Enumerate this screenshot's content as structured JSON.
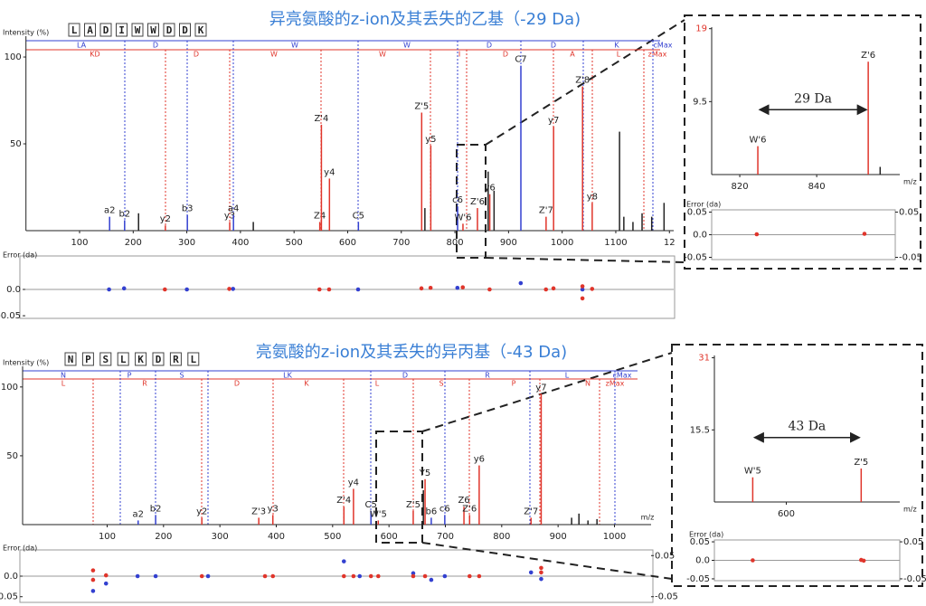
{
  "chart_data": [
    {
      "type": "stem",
      "title": "异亮氨酸的z-ion及其丢失的乙基（-29 Da)",
      "ylabel": "Intensity (%)",
      "sequence": [
        "L",
        "A",
        "D",
        "I",
        "W",
        "W",
        "D",
        "D",
        "K"
      ],
      "c_ladder": [
        "LA",
        "D",
        "W",
        "W",
        "D",
        "D",
        "K",
        "cMax"
      ],
      "z_ladder": [
        "KD",
        "D",
        "W",
        "W",
        "I",
        "D",
        "A",
        "L",
        "zMax"
      ],
      "x": [
        156,
        184,
        210,
        260,
        301,
        380,
        387,
        424,
        548,
        551,
        566,
        620,
        738,
        744,
        755,
        805,
        815,
        842,
        862,
        865,
        873,
        923,
        970,
        984,
        1038,
        1056,
        1107,
        1115,
        1132,
        1149,
        1167,
        1190
      ],
      "values": [
        8,
        6,
        10,
        3,
        9,
        5,
        9,
        5,
        5,
        61,
        30,
        5,
        68,
        13,
        49,
        14,
        4,
        13,
        34,
        21,
        23,
        95,
        8,
        60,
        83,
        16,
        57,
        8,
        5,
        10,
        8,
        16
      ],
      "labels": [
        "a2",
        "b2",
        null,
        "y2",
        "b3",
        "y3",
        "a4",
        null,
        "Z4",
        "Z'4",
        "y4",
        "C5",
        "Z'5",
        null,
        "y5",
        "c6",
        "W'6",
        "Z'6",
        null,
        "y6",
        null,
        "C7",
        "Z'7",
        "y7",
        "Z'8",
        "y8",
        null,
        null,
        null,
        null,
        null,
        null
      ],
      "colors": [
        "#3340d0",
        "#3340d0",
        "#222222",
        "#e0352b",
        "#3340d0",
        "#e0352b",
        "#3340d0",
        "#222222",
        "#e0352b",
        "#e0352b",
        "#e0352b",
        "#3340d0",
        "#e0352b",
        "#222222",
        "#e0352b",
        "#3340d0",
        "#e0352b",
        "#e0352b",
        "#222222",
        "#e0352b",
        "#222222",
        "#3340d0",
        "#e0352b",
        "#e0352b",
        "#e0352b",
        "#e0352b",
        "#222222",
        "#222222",
        "#222222",
        "#222222",
        "#222222",
        "#222222"
      ],
      "xlim": [
        0,
        1208
      ],
      "ylim": [
        0,
        112
      ],
      "xticks": [
        100,
        200,
        300,
        400,
        500,
        600,
        700,
        800,
        900,
        1000,
        1100,
        {
          "value": 1200,
          "label": "12"
        }
      ],
      "yticks": [
        50,
        100
      ]
    },
    {
      "type": "scatter",
      "ylabel": "Error (da)",
      "xlim": [
        0,
        1208
      ],
      "ylim": [
        -0.055,
        0.055
      ],
      "yticks": [
        {
          "value": 0,
          "label": "0.0"
        },
        -0.05
      ],
      "series": [
        {
          "color": "#3340d0",
          "x": [
            156,
            184,
            301,
            387,
            620,
            805,
            923,
            1038
          ],
          "values": [
            0,
            0.002,
            0,
            0.001,
            0,
            0.003,
            0.012,
            0
          ]
        },
        {
          "color": "#e0352b",
          "x": [
            260,
            380,
            548,
            566,
            738,
            755,
            815,
            865,
            970,
            984,
            1038,
            1038,
            1056
          ],
          "values": [
            0,
            0.001,
            0,
            0,
            0.002,
            0.003,
            0.004,
            0,
            0,
            0.002,
            -0.017,
            0.006,
            0.001
          ]
        }
      ]
    },
    {
      "type": "stem",
      "xlabel": "m/z",
      "annotation": "29 Da",
      "x": [
        824.7,
        853.4,
        856.5
      ],
      "values": [
        3.7,
        14.7,
        1
      ],
      "labels": [
        "W'6",
        "Z'6",
        null
      ],
      "colors": [
        "#e0352b",
        "#e0352b",
        "#222222"
      ],
      "xlim": [
        812.7,
        861.6
      ],
      "ylim": [
        0,
        19.2
      ],
      "xticks": [
        820,
        840
      ],
      "yticks": [
        9.5,
        19
      ]
    },
    {
      "type": "scatter",
      "ylabel": "Error (da)",
      "xlim": [
        812.7,
        861.6
      ],
      "ylim": [
        -0.055,
        0.055
      ],
      "yticks": [
        0.05,
        {
          "value": 0,
          "label": "0.0"
        },
        -0.05
      ],
      "y2ticks": [
        0.05,
        -0.05
      ],
      "series": [
        {
          "color": "#e0352b",
          "x": [
            824.7,
            853.4
          ],
          "values": [
            0.001,
            0.002
          ]
        }
      ]
    },
    {
      "type": "stem",
      "title": "亮氨酸的z-ion及其丢失的异丙基（-43 Da)",
      "ylabel": "Intensity (%)",
      "xlabel": "m/z",
      "sequence": [
        "N",
        "P",
        "S",
        "L",
        "K",
        "D",
        "R",
        "L"
      ],
      "c_ladder": [
        "N",
        "P",
        "S",
        "LK",
        "D",
        "R",
        "L",
        "cMax"
      ],
      "z_ladder": [
        "L",
        "R",
        "D",
        "K",
        "L",
        "S",
        "P",
        "N",
        "zMax"
      ],
      "x": [
        155,
        186,
        268,
        369,
        394,
        520,
        537,
        568,
        581,
        643,
        661,
        664,
        675,
        699,
        733,
        743,
        760,
        852,
        870,
        924,
        937,
        953,
        969
      ],
      "values": [
        3,
        7,
        5,
        5,
        7,
        13,
        26,
        10,
        3,
        10,
        25,
        33,
        5,
        7,
        13,
        7,
        43,
        5,
        95,
        5,
        8,
        3,
        4
      ],
      "labels": [
        "a2",
        "b2",
        "y2",
        "Z'3",
        "y3",
        "Z'4",
        "y4",
        "C5",
        "W'5",
        "Z'5",
        null,
        "Y5",
        "b6",
        "c6",
        "Z6",
        "Z'6",
        "y6",
        "Z'7",
        "y7",
        null,
        null,
        null,
        null
      ],
      "colors": [
        "#3340d0",
        "#3340d0",
        "#e0352b",
        "#e0352b",
        "#e0352b",
        "#e0352b",
        "#e0352b",
        "#3340d0",
        "#e0352b",
        "#e0352b",
        "#222222",
        "#e0352b",
        "#3340d0",
        "#3340d0",
        "#e0352b",
        "#e0352b",
        "#e0352b",
        "#e0352b",
        "#e0352b",
        "#222222",
        "#222222",
        "#222222",
        "#222222"
      ],
      "xlim": [
        -50,
        1065
      ],
      "ylim": [
        0,
        115
      ],
      "xticks": [
        100,
        200,
        300,
        400,
        500,
        600,
        700,
        800,
        900,
        1000
      ],
      "yticks": [
        50,
        100
      ]
    },
    {
      "type": "scatter",
      "ylabel": "Error (da)",
      "xlim": [
        -50,
        1065
      ],
      "ylim": [
        -0.055,
        0.055
      ],
      "yticks": [
        {
          "value": 0,
          "label": "0.0"
        },
        -0.05
      ],
      "y2ticks": [
        0.05,
        -0.05
      ],
      "series": [
        {
          "color": "#3340d0",
          "x": [
            75,
            98,
            154,
            186,
            279,
            520,
            548,
            643,
            675,
            699,
            852,
            870
          ],
          "values": [
            -0.036,
            -0.018,
            0,
            0,
            0,
            0.036,
            0,
            0.007,
            -0.009,
            0,
            0.009,
            -0.007
          ]
        },
        {
          "color": "#e0352b",
          "x": [
            75,
            75,
            98,
            268,
            380,
            394,
            520,
            537,
            568,
            581,
            643,
            664,
            743,
            760,
            870,
            870
          ],
          "values": [
            0.014,
            -0.009,
            0.002,
            0,
            0,
            0,
            0,
            0,
            0,
            0,
            0,
            0,
            0,
            0,
            0.02,
            0.009
          ]
        }
      ]
    },
    {
      "type": "stem",
      "xlabel": "m/z",
      "annotation": "43 Da",
      "x": [
        586.7,
        629.7
      ],
      "values": [
        5.3,
        7.2
      ],
      "labels": [
        "W'5",
        "Z'5"
      ],
      "colors": [
        "#e0352b",
        "#e0352b"
      ],
      "xlim": [
        571.5,
        645
      ],
      "ylim": [
        0,
        31.5
      ],
      "xticks": [
        600
      ],
      "yticks": [
        15.5,
        31
      ]
    },
    {
      "type": "scatter",
      "ylabel": "Error (da)",
      "xlim": [
        571.5,
        645
      ],
      "ylim": [
        -0.055,
        0.055
      ],
      "yticks": [
        0.05,
        {
          "value": 0,
          "label": "0.0"
        },
        -0.05
      ],
      "y2ticks": [
        0.05,
        -0.05
      ],
      "series": [
        {
          "color": "#e0352b",
          "x": [
            586.7,
            629.7,
            630.7
          ],
          "values": [
            0.0,
            0.001,
            -0.001
          ]
        }
      ]
    }
  ]
}
